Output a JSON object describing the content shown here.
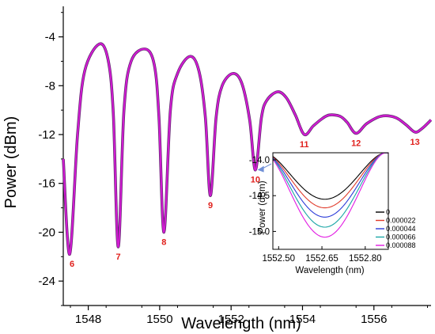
{
  "colors": {
    "main_series": "#d21bd2",
    "main_series_shadow": "#5a2a6a",
    "dip_label": "#e0201c",
    "axis": "#000000",
    "arrow": "#6f8fd6"
  },
  "chart_data": [
    {
      "id": "main",
      "type": "line",
      "xlabel": "Wavelength (nm)",
      "ylabel": "Power (dBm)",
      "xlim": [
        1547.3,
        1557.6
      ],
      "ylim": [
        -26.0,
        -1.5
      ],
      "x_ticks": [
        {
          "value": 1548,
          "label": "1548"
        },
        {
          "value": 1550,
          "label": "1550"
        },
        {
          "value": 1552,
          "label": "1552"
        },
        {
          "value": 1554,
          "label": "1554"
        },
        {
          "value": 1556,
          "label": "1556"
        }
      ],
      "y_ticks": [
        {
          "value": -4,
          "label": "-4"
        },
        {
          "value": -8,
          "label": "-8"
        },
        {
          "value": -12,
          "label": "-12"
        },
        {
          "value": -16,
          "label": "-16"
        },
        {
          "value": -20,
          "label": "-20"
        },
        {
          "value": -24,
          "label": "-24"
        }
      ],
      "grid": false,
      "series": [
        {
          "values": [
            [
              1547.3,
              -14.0
            ],
            [
              1547.48,
              -21.8
            ],
            [
              1547.7,
              -12.0
            ],
            [
              1547.9,
              -6.8
            ],
            [
              1548.3,
              -4.6
            ],
            [
              1548.55,
              -5.8
            ],
            [
              1548.7,
              -10.2
            ],
            [
              1548.84,
              -21.2
            ],
            [
              1549.0,
              -10.0
            ],
            [
              1549.2,
              -6.0
            ],
            [
              1549.6,
              -5.0
            ],
            [
              1549.85,
              -6.3
            ],
            [
              1549.98,
              -10.6
            ],
            [
              1550.12,
              -20.0
            ],
            [
              1550.3,
              -10.0
            ],
            [
              1550.5,
              -7.0
            ],
            [
              1550.85,
              -5.6
            ],
            [
              1551.1,
              -6.8
            ],
            [
              1551.28,
              -10.6
            ],
            [
              1551.42,
              -17.0
            ],
            [
              1551.58,
              -10.6
            ],
            [
              1551.75,
              -8.0
            ],
            [
              1552.05,
              -7.0
            ],
            [
              1552.3,
              -7.8
            ],
            [
              1552.52,
              -10.8
            ],
            [
              1552.68,
              -14.9
            ],
            [
              1552.85,
              -10.6
            ],
            [
              1553.0,
              -9.2
            ],
            [
              1553.3,
              -8.5
            ],
            [
              1553.55,
              -9.0
            ],
            [
              1553.8,
              -10.4
            ],
            [
              1554.05,
              -12.0
            ],
            [
              1554.3,
              -11.3
            ],
            [
              1554.55,
              -10.7
            ],
            [
              1554.75,
              -10.4
            ],
            [
              1555.05,
              -10.5
            ],
            [
              1555.25,
              -11.0
            ],
            [
              1555.5,
              -11.9
            ],
            [
              1555.8,
              -11.1
            ],
            [
              1556.2,
              -10.5
            ],
            [
              1556.6,
              -10.6
            ],
            [
              1556.9,
              -11.2
            ],
            [
              1557.15,
              -11.8
            ],
            [
              1557.35,
              -11.5
            ],
            [
              1557.6,
              -10.8
            ]
          ]
        }
      ],
      "annotations": [
        {
          "label": "6",
          "x": 1547.5,
          "y": -21.8
        },
        {
          "label": "7",
          "x": 1548.84,
          "y": -21.2
        },
        {
          "label": "8",
          "x": 1550.12,
          "y": -20.0
        },
        {
          "label": "9",
          "x": 1551.42,
          "y": -17.0
        },
        {
          "label": "10",
          "x": 1552.68,
          "y": -14.9
        },
        {
          "label": "11",
          "x": 1554.05,
          "y": -12.0
        },
        {
          "label": "12",
          "x": 1555.5,
          "y": -11.9
        },
        {
          "label": "13",
          "x": 1557.15,
          "y": -11.8
        }
      ]
    },
    {
      "id": "inset",
      "type": "line",
      "xlabel": "Wavelength (nm)",
      "ylabel": "Power (dBm)",
      "xlim": [
        1552.48,
        1552.88
      ],
      "ylim": [
        -15.25,
        -13.9
      ],
      "x_ticks": [
        {
          "value": 1552.5,
          "label": "1552.50"
        },
        {
          "value": 1552.65,
          "label": "1552.65"
        },
        {
          "value": 1552.8,
          "label": "1552.80"
        }
      ],
      "y_ticks": [
        {
          "value": -14.0,
          "label": "-14.0"
        },
        {
          "value": -14.5,
          "label": "-14.5"
        },
        {
          "value": -15.0,
          "label": "-15.0"
        }
      ],
      "legend": "right",
      "series": [
        {
          "name": "0",
          "color": "#000000",
          "min": -14.55
        },
        {
          "name": "0.000022",
          "color": "#e03a2a",
          "min": -14.67
        },
        {
          "name": "0.000044",
          "color": "#2a3ad8",
          "min": -14.8
        },
        {
          "name": "0.000066",
          "color": "#1aa6a6",
          "min": -14.94
        },
        {
          "name": "0.000088",
          "color": "#e21be2",
          "min": -15.08
        }
      ],
      "series_shape": {
        "center": 1552.66,
        "width_at_top": 0.15
      }
    }
  ]
}
